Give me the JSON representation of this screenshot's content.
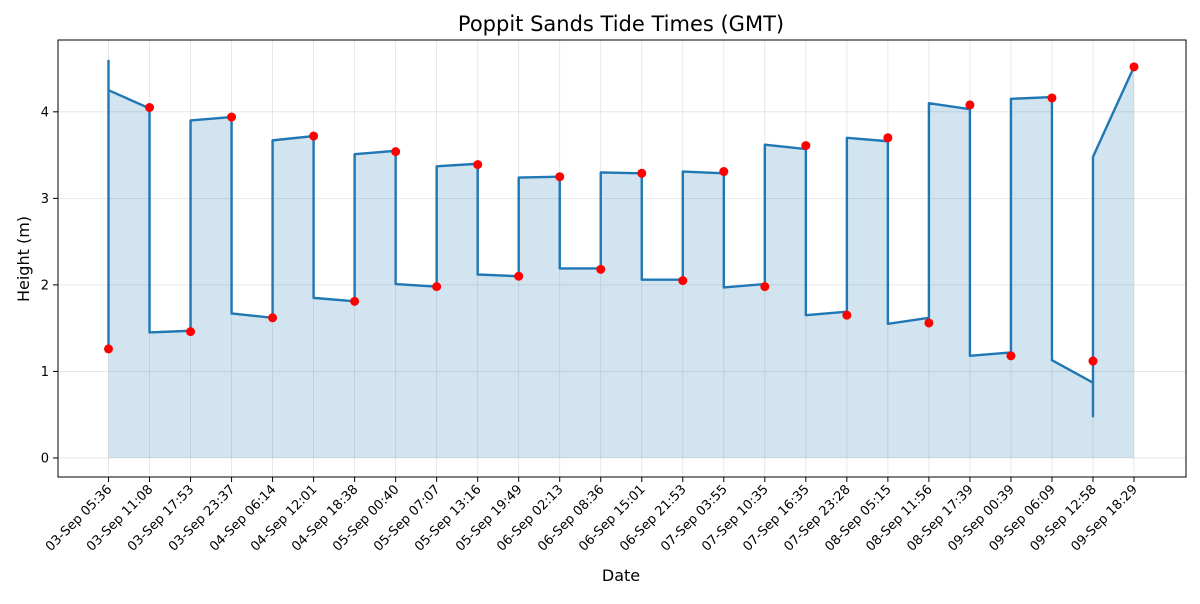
{
  "chart_data": {
    "type": "line",
    "title": "Poppit Sands Tide Times (GMT)",
    "xlabel": "Date",
    "ylabel": "Height (m)",
    "ylim": [
      -0.22,
      4.83
    ],
    "yticks": [
      0,
      1,
      2,
      3,
      4
    ],
    "grid": true,
    "legend": "none",
    "colors": {
      "line": "#1f77b4",
      "fill": "#1f77b4",
      "marker": "#ff0000"
    },
    "categories": [
      "03-Sep 05:36",
      "03-Sep 11:08",
      "03-Sep 17:53",
      "03-Sep 23:37",
      "04-Sep 06:14",
      "04-Sep 12:01",
      "04-Sep 18:38",
      "05-Sep 00:40",
      "05-Sep 07:07",
      "05-Sep 13:16",
      "05-Sep 19:49",
      "06-Sep 02:13",
      "06-Sep 08:36",
      "06-Sep 15:01",
      "06-Sep 21:53",
      "07-Sep 03:55",
      "07-Sep 10:35",
      "07-Sep 16:35",
      "07-Sep 23:28",
      "08-Sep 05:15",
      "08-Sep 11:56",
      "08-Sep 17:39",
      "09-Sep 00:39",
      "09-Sep 06:09",
      "09-Sep 12:58",
      "09-Sep 18:29"
    ],
    "x_end": "09-Sep 18:29",
    "series": [
      {
        "values": [
          1.26,
          4.05,
          1.46,
          3.94,
          1.62,
          3.72,
          1.81,
          3.54,
          1.98,
          3.39,
          2.1,
          3.25,
          2.18,
          3.29,
          2.05,
          3.31,
          1.98,
          3.61,
          1.65,
          3.7,
          1.56,
          4.08,
          1.18,
          4.16,
          1.12,
          4.52
        ]
      }
    ],
    "line_path": [
      [
        0,
        1.26
      ],
      [
        0,
        4.59
      ],
      [
        0,
        4.25
      ],
      [
        1,
        4.04
      ],
      [
        1,
        1.45
      ],
      [
        2,
        1.47
      ],
      [
        2,
        3.9
      ],
      [
        3,
        3.94
      ],
      [
        3,
        1.67
      ],
      [
        4,
        1.62
      ],
      [
        4,
        3.67
      ],
      [
        5,
        3.72
      ],
      [
        5,
        1.85
      ],
      [
        6,
        1.81
      ],
      [
        6,
        3.51
      ],
      [
        7,
        3.55
      ],
      [
        7,
        2.01
      ],
      [
        8,
        1.98
      ],
      [
        8,
        3.37
      ],
      [
        9,
        3.4
      ],
      [
        9,
        2.12
      ],
      [
        10,
        2.1
      ],
      [
        10,
        3.24
      ],
      [
        11,
        3.25
      ],
      [
        11,
        2.19
      ],
      [
        12,
        2.19
      ],
      [
        12,
        3.3
      ],
      [
        13,
        3.29
      ],
      [
        13,
        2.06
      ],
      [
        14,
        2.06
      ],
      [
        14,
        3.31
      ],
      [
        15,
        3.29
      ],
      [
        15,
        1.97
      ],
      [
        16,
        2.01
      ],
      [
        16,
        3.62
      ],
      [
        17,
        3.57
      ],
      [
        17,
        1.65
      ],
      [
        18,
        1.69
      ],
      [
        18,
        3.7
      ],
      [
        19,
        3.66
      ],
      [
        19,
        1.55
      ],
      [
        20,
        1.62
      ],
      [
        20,
        4.1
      ],
      [
        21,
        4.03
      ],
      [
        21,
        1.18
      ],
      [
        22,
        1.22
      ],
      [
        22,
        4.15
      ],
      [
        23,
        4.17
      ],
      [
        23,
        1.13
      ],
      [
        24,
        0.87
      ],
      [
        24,
        0.48
      ],
      [
        24,
        3.48
      ],
      [
        25,
        4.52
      ]
    ]
  }
}
